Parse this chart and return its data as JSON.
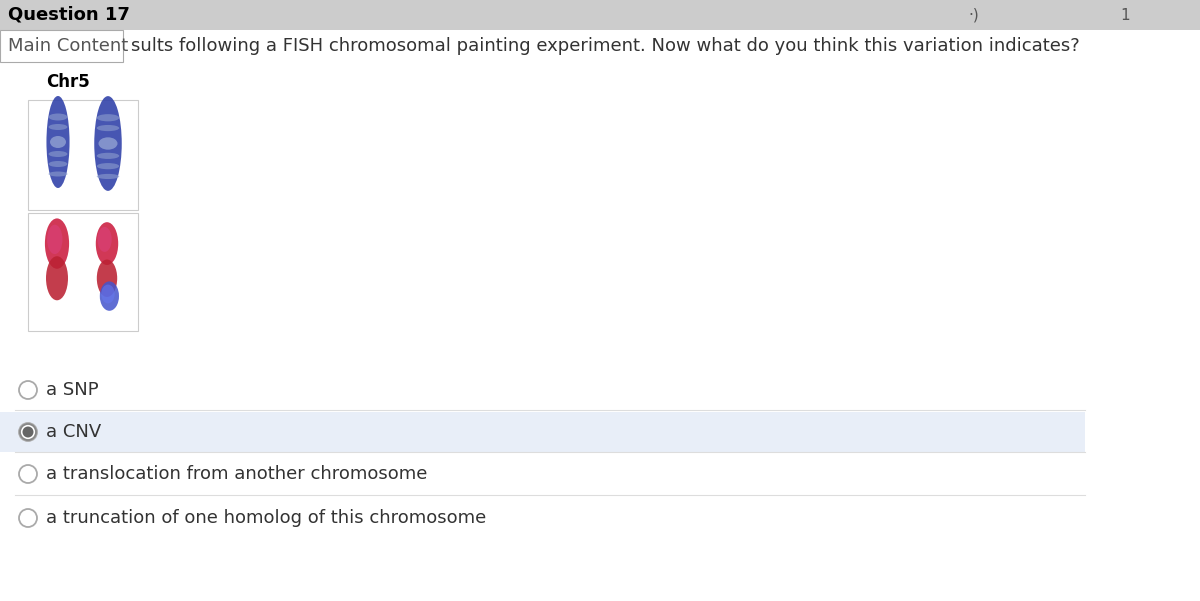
{
  "title": "Question 17",
  "nav_label": "Main Content",
  "question_text": "sults following a FISH chromosomal painting experiment. Now what do you think this variation indicates?",
  "chr_label": "Chr5",
  "options": [
    {
      "text": "a SNP",
      "selected": false
    },
    {
      "text": "a CNV",
      "selected": true
    },
    {
      "text": "a translocation from another chromosome",
      "selected": false
    },
    {
      "text": "a truncation of one homolog of this chromosome",
      "selected": false
    }
  ],
  "bg_color": "#ffffff",
  "header_bg": "#cccccc",
  "selected_bg": "#e8eef8",
  "title_fontsize": 13,
  "question_fontsize": 13,
  "option_fontsize": 13,
  "chr_label_fontsize": 12
}
